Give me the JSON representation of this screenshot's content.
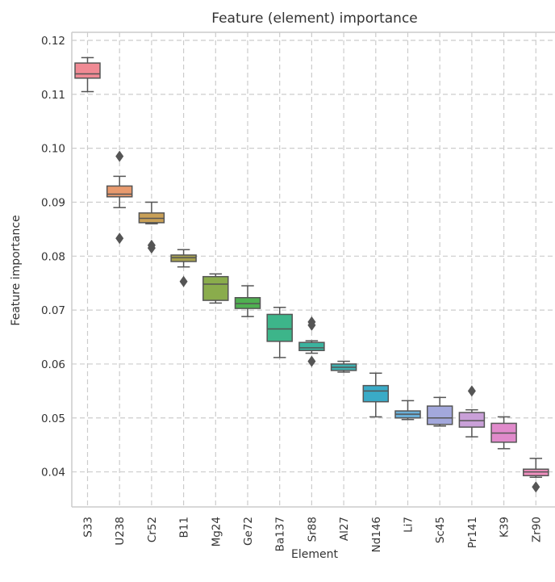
{
  "chart_data": {
    "type": "boxplot",
    "title": "Feature (element) importance",
    "xlabel": "Element",
    "ylabel": "Feature importance",
    "ylim": [
      0.0335,
      0.1215
    ],
    "y_ticks": [
      "0.04",
      "0.05",
      "0.06",
      "0.07",
      "0.08",
      "0.09",
      "0.10",
      "0.11",
      "0.12"
    ],
    "grid": true,
    "categories": [
      "S33",
      "U238",
      "Cr52",
      "B11",
      "Mg24",
      "Ge72",
      "Ba137",
      "Sr88",
      "Al27",
      "Nd146",
      "Li7",
      "Sc45",
      "Pr141",
      "K39",
      "Zr90"
    ],
    "colors": [
      "#f08a94",
      "#e89a6e",
      "#c9a057",
      "#a6a04e",
      "#8aac4c",
      "#4fb051",
      "#3db58a",
      "#3bb39e",
      "#3fb0b0",
      "#3aabc7",
      "#6aaed6",
      "#a3a8dc",
      "#c9a0d8",
      "#e08acb",
      "#ee8fbd"
    ],
    "boxes": [
      {
        "min": 0.1105,
        "q1": 0.113,
        "median": 0.1138,
        "q3": 0.1158,
        "max": 0.1168,
        "outliers": []
      },
      {
        "min": 0.089,
        "q1": 0.091,
        "median": 0.0915,
        "q3": 0.093,
        "max": 0.0948,
        "outliers": [
          0.0985,
          0.0833
        ]
      },
      {
        "min": 0.086,
        "q1": 0.0862,
        "median": 0.087,
        "q3": 0.088,
        "max": 0.09,
        "outliers": [
          0.082,
          0.0815
        ]
      },
      {
        "min": 0.078,
        "q1": 0.079,
        "median": 0.0797,
        "q3": 0.0802,
        "max": 0.0812,
        "outliers": [
          0.0753
        ]
      },
      {
        "min": 0.0713,
        "q1": 0.0718,
        "median": 0.0748,
        "q3": 0.0762,
        "max": 0.0767,
        "outliers": []
      },
      {
        "min": 0.0688,
        "q1": 0.0703,
        "median": 0.0712,
        "q3": 0.0723,
        "max": 0.0745,
        "outliers": []
      },
      {
        "min": 0.0612,
        "q1": 0.0642,
        "median": 0.0665,
        "q3": 0.0692,
        "max": 0.0705,
        "outliers": []
      },
      {
        "min": 0.062,
        "q1": 0.0625,
        "median": 0.063,
        "q3": 0.064,
        "max": 0.0643,
        "outliers": [
          0.0678,
          0.0672,
          0.0605
        ]
      },
      {
        "min": 0.0585,
        "q1": 0.0588,
        "median": 0.0594,
        "q3": 0.06,
        "max": 0.0605,
        "outliers": []
      },
      {
        "min": 0.0502,
        "q1": 0.053,
        "median": 0.055,
        "q3": 0.056,
        "max": 0.0583,
        "outliers": []
      },
      {
        "min": 0.0497,
        "q1": 0.05,
        "median": 0.0507,
        "q3": 0.0513,
        "max": 0.0532,
        "outliers": []
      },
      {
        "min": 0.0485,
        "q1": 0.0488,
        "median": 0.05,
        "q3": 0.0522,
        "max": 0.0538,
        "outliers": []
      },
      {
        "min": 0.0465,
        "q1": 0.0483,
        "median": 0.0495,
        "q3": 0.051,
        "max": 0.0515,
        "outliers": [
          0.055
        ]
      },
      {
        "min": 0.0443,
        "q1": 0.0455,
        "median": 0.0472,
        "q3": 0.049,
        "max": 0.0502,
        "outliers": []
      },
      {
        "min": 0.039,
        "q1": 0.0393,
        "median": 0.04,
        "q3": 0.0405,
        "max": 0.0425,
        "outliers": [
          0.0372
        ]
      }
    ]
  }
}
